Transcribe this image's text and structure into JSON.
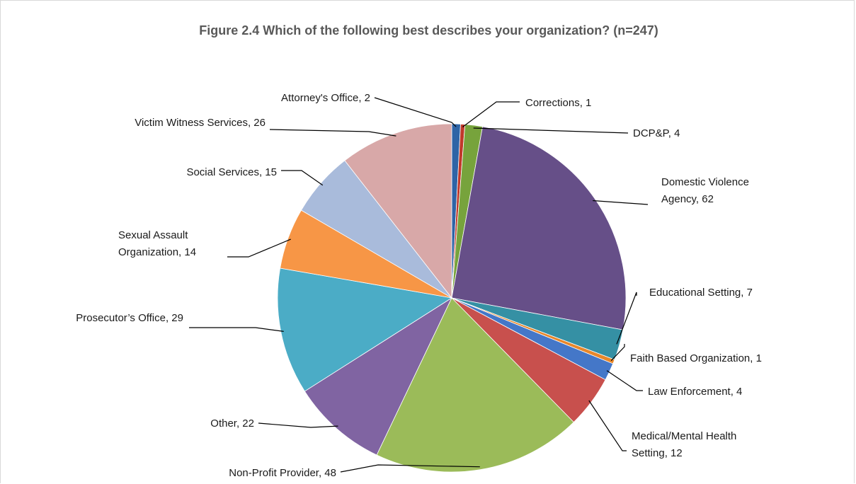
{
  "chart_data": {
    "type": "pie",
    "title": "Figure 2.4  Which of the following best describes your organization? (n=247)",
    "slices": [
      {
        "label": "Attorney's Office",
        "value": 2,
        "color": "#2e64a6",
        "label_lines": [
          "Attorney's Office, 2"
        ]
      },
      {
        "label": "Corrections",
        "value": 1,
        "color": "#c0392b",
        "label_lines": [
          "Corrections, 1"
        ]
      },
      {
        "label": "DCP&P",
        "value": 4,
        "color": "#77a33c",
        "label_lines": [
          "DCP&P, 4"
        ]
      },
      {
        "label": "Domestic Violence Agency",
        "value": 62,
        "color": "#664f88",
        "label_lines": [
          "Domestic Violence",
          "Agency, 62"
        ]
      },
      {
        "label": "Educational Setting",
        "value": 7,
        "color": "#3590a4",
        "label_lines": [
          "Educational Setting, 7"
        ]
      },
      {
        "label": "Faith Based Organization",
        "value": 1,
        "color": "#e8872a",
        "label_lines": [
          "Faith Based Organization, 1"
        ]
      },
      {
        "label": "Law Enforcement",
        "value": 4,
        "color": "#4477c8",
        "label_lines": [
          "Law Enforcement, 4"
        ]
      },
      {
        "label": "Medical/Mental Health Setting",
        "value": 12,
        "color": "#c8504d",
        "label_lines": [
          "Medical/Mental Health",
          "Setting, 12"
        ]
      },
      {
        "label": "Non-Profit Provider",
        "value": 48,
        "color": "#9bbb59",
        "label_lines": [
          "Non-Profit Provider, 48"
        ]
      },
      {
        "label": "Other",
        "value": 22,
        "color": "#8064a2",
        "label_lines": [
          "Other, 22"
        ]
      },
      {
        "label": "Prosecutor’s Office",
        "value": 29,
        "color": "#4bacc6",
        "label_lines": [
          "Prosecutor’s Office, 29"
        ]
      },
      {
        "label": "Sexual Assault Organization",
        "value": 14,
        "color": "#f79646",
        "label_lines": [
          "Sexual Assault",
          "Organization, 14"
        ]
      },
      {
        "label": "Social Services",
        "value": 15,
        "color": "#a9bbdb",
        "label_lines": [
          "Social Services, 15"
        ]
      },
      {
        "label": "Victim Witness Services",
        "value": 26,
        "color": "#d8a8a8",
        "label_lines": [
          "Victim Witness Services, 26"
        ]
      }
    ],
    "legend": "none",
    "data_labels": "outside with leader lines"
  }
}
